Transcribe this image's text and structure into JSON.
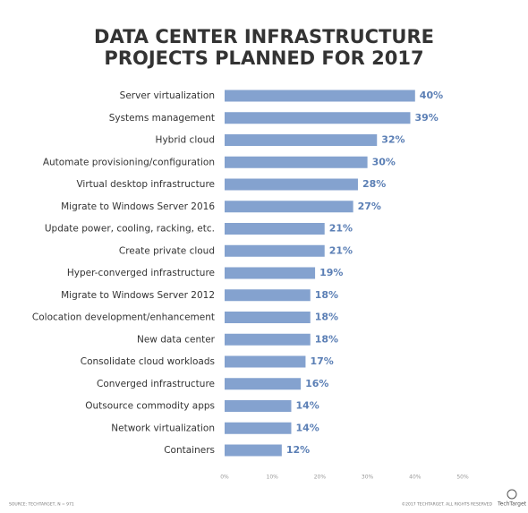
{
  "chart_data": {
    "type": "hbar",
    "title": [
      "DATA CENTER INFRASTRUCTURE",
      "PROJECTS PLANNED FOR 2017"
    ],
    "categories": [
      "Server virtualization",
      "Systems management",
      "Hybrid cloud",
      "Automate provisioning/configuration",
      "Virtual desktop infrastructure",
      "Migrate to Windows Server 2016",
      "Update power, cooling, racking, etc.",
      "Create private cloud",
      "Hyper-converged infrastructure",
      "Migrate to Windows Server 2012",
      "Colocation development/enhancement",
      "New data center",
      "Consolidate cloud workloads",
      "Converged infrastructure",
      "Outsource commodity apps",
      "Network virtualization",
      "Containers"
    ],
    "values": [
      40,
      39,
      32,
      30,
      28,
      27,
      21,
      21,
      19,
      18,
      18,
      18,
      17,
      16,
      14,
      14,
      12
    ],
    "value_labels": [
      "40%",
      "39%",
      "32%",
      "30%",
      "28%",
      "27%",
      "21%",
      "21%",
      "19%",
      "18%",
      "18%",
      "18%",
      "17%",
      "16%",
      "14%",
      "14%",
      "12%"
    ],
    "color": "#84a2cf",
    "label_color": "#5b7fb5",
    "xlim": [
      0,
      50
    ],
    "xticks": [
      {
        "value": 0,
        "label": "0%"
      },
      {
        "value": 10,
        "label": "10%"
      },
      {
        "value": 20,
        "label": "20%"
      },
      {
        "value": 30,
        "label": "30%"
      },
      {
        "value": 40,
        "label": "40%"
      },
      {
        "value": 50,
        "label": "50%"
      }
    ],
    "grid": false,
    "source": "SOURCE: TECHTARGET, N = 971",
    "copyright": "©2017 TECHTARGET. ALL RIGHTS RESERVED",
    "logo": "TechTarget"
  }
}
